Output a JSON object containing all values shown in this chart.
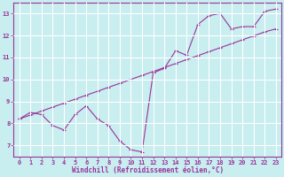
{
  "x_hours": [
    0,
    1,
    2,
    3,
    4,
    5,
    6,
    7,
    8,
    9,
    10,
    11,
    12,
    13,
    14,
    15,
    16,
    17,
    18,
    19,
    20,
    21,
    22,
    23
  ],
  "line1_y": [
    8.2,
    8.5,
    8.4,
    7.9,
    7.7,
    8.4,
    8.8,
    8.2,
    7.9,
    7.2,
    6.8,
    6.7,
    10.3,
    10.5,
    11.3,
    11.1,
    12.5,
    12.9,
    13.0,
    12.3,
    12.4,
    12.4,
    13.1,
    13.2
  ],
  "line2_y": [
    8.2,
    8.38,
    8.56,
    8.74,
    8.92,
    9.1,
    9.28,
    9.46,
    9.64,
    9.82,
    10.0,
    10.18,
    10.36,
    10.54,
    10.72,
    10.9,
    11.08,
    11.26,
    11.44,
    11.62,
    11.8,
    11.98,
    12.16,
    12.3
  ],
  "line_color": "#993399",
  "bg_color": "#c8eef0",
  "grid_color": "#ffffff",
  "xlabel": "Windchill (Refroidissement éolien,°C)",
  "ylim": [
    6.5,
    13.5
  ],
  "xlim": [
    -0.5,
    23.5
  ],
  "yticks": [
    7,
    8,
    9,
    10,
    11,
    12,
    13
  ],
  "xticks": [
    0,
    1,
    2,
    3,
    4,
    5,
    6,
    7,
    8,
    9,
    10,
    11,
    12,
    13,
    14,
    15,
    16,
    17,
    18,
    19,
    20,
    21,
    22,
    23
  ]
}
